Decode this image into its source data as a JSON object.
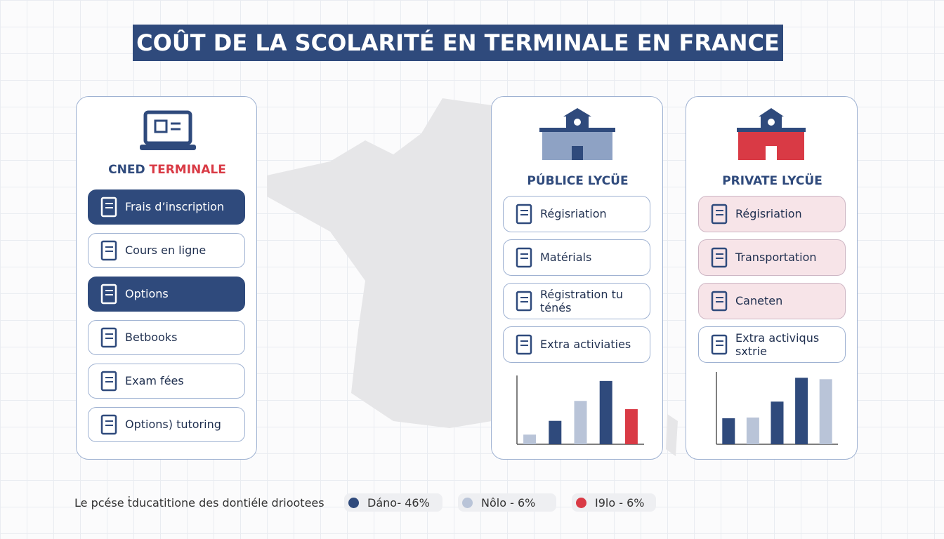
{
  "header": {
    "title": "COÛT DE LA SCOLARITÉ EN TERMINALE EN FRANCE"
  },
  "cned": {
    "title_parts": [
      "CNED",
      "TERMINALE"
    ],
    "items": [
      "Frais d’inscription",
      "Cours en ligne",
      "Options",
      "Betbooks",
      "Exam fées",
      "Options) tutoring"
    ],
    "highlighted": [
      true,
      false,
      true,
      false,
      false,
      false
    ]
  },
  "public": {
    "title": "PÚBLICE LYCÜE",
    "items": [
      "Régisriation",
      "Matérials",
      "Régistration tu ténés",
      "Extra activiaties"
    ],
    "chart_data": {
      "type": "bar",
      "values": [
        14,
        34,
        63,
        92,
        51
      ],
      "colors": [
        "#b9c4d8",
        "#2f4a7c",
        "#b9c4d8",
        "#2f4a7c",
        "#d93a45"
      ],
      "ylim": [
        0,
        100
      ]
    }
  },
  "private": {
    "title": "PRIVATE LYCÜE",
    "items": [
      "Régisriation",
      "Transportation",
      "Caneten",
      "Extra activiqus sxtrie"
    ],
    "highlighted": [
      true,
      true,
      true,
      false
    ],
    "chart_data": {
      "type": "bar",
      "values": [
        36,
        37,
        59,
        92,
        90
      ],
      "colors": [
        "#2f4a7c",
        "#b9c4d8",
        "#2f4a7c",
        "#2f4a7c",
        "#b9c4d8"
      ],
      "ylim": [
        0,
        100
      ]
    }
  },
  "footer": {
    "text": "Le pcése ṫducatitione des dontiéle driootees",
    "legend": [
      {
        "label": "Dáno- 46%",
        "color": "#2f4a7c"
      },
      {
        "label": "Nôlo - 6%",
        "color": "#b9c4d8"
      },
      {
        "label": "I9lo - 6%",
        "color": "#d93a45"
      }
    ]
  }
}
